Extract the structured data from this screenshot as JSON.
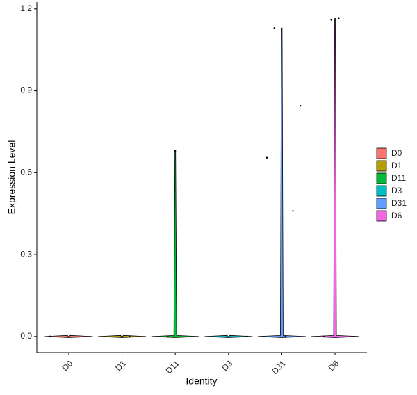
{
  "chart_data": {
    "type": "violin",
    "x_label": "Identity",
    "y_label": "Expression Level",
    "categories": [
      "D0",
      "D1",
      "D11",
      "D3",
      "D31",
      "D6"
    ],
    "series": [
      {
        "name": "D0",
        "color": "#F8766D",
        "values": [
          0
        ]
      },
      {
        "name": "D1",
        "color": "#B79F00",
        "values": [
          0
        ]
      },
      {
        "name": "D11",
        "color": "#00BA38",
        "values": [
          0,
          0.68
        ]
      },
      {
        "name": "D3",
        "color": "#00BFC4",
        "values": [
          0
        ]
      },
      {
        "name": "D31",
        "color": "#619CFF",
        "values": [
          0,
          0.46,
          0.845,
          0.655,
          1.13
        ]
      },
      {
        "name": "D6",
        "color": "#F564E3",
        "values": [
          0,
          1.16,
          1.165
        ]
      }
    ],
    "ylim": [
      -0.059,
      1.225
    ],
    "yticks": [
      {
        "value": 0,
        "label": "0.0"
      },
      0.3,
      0.6,
      0.9,
      1.2
    ],
    "legend": "right"
  }
}
